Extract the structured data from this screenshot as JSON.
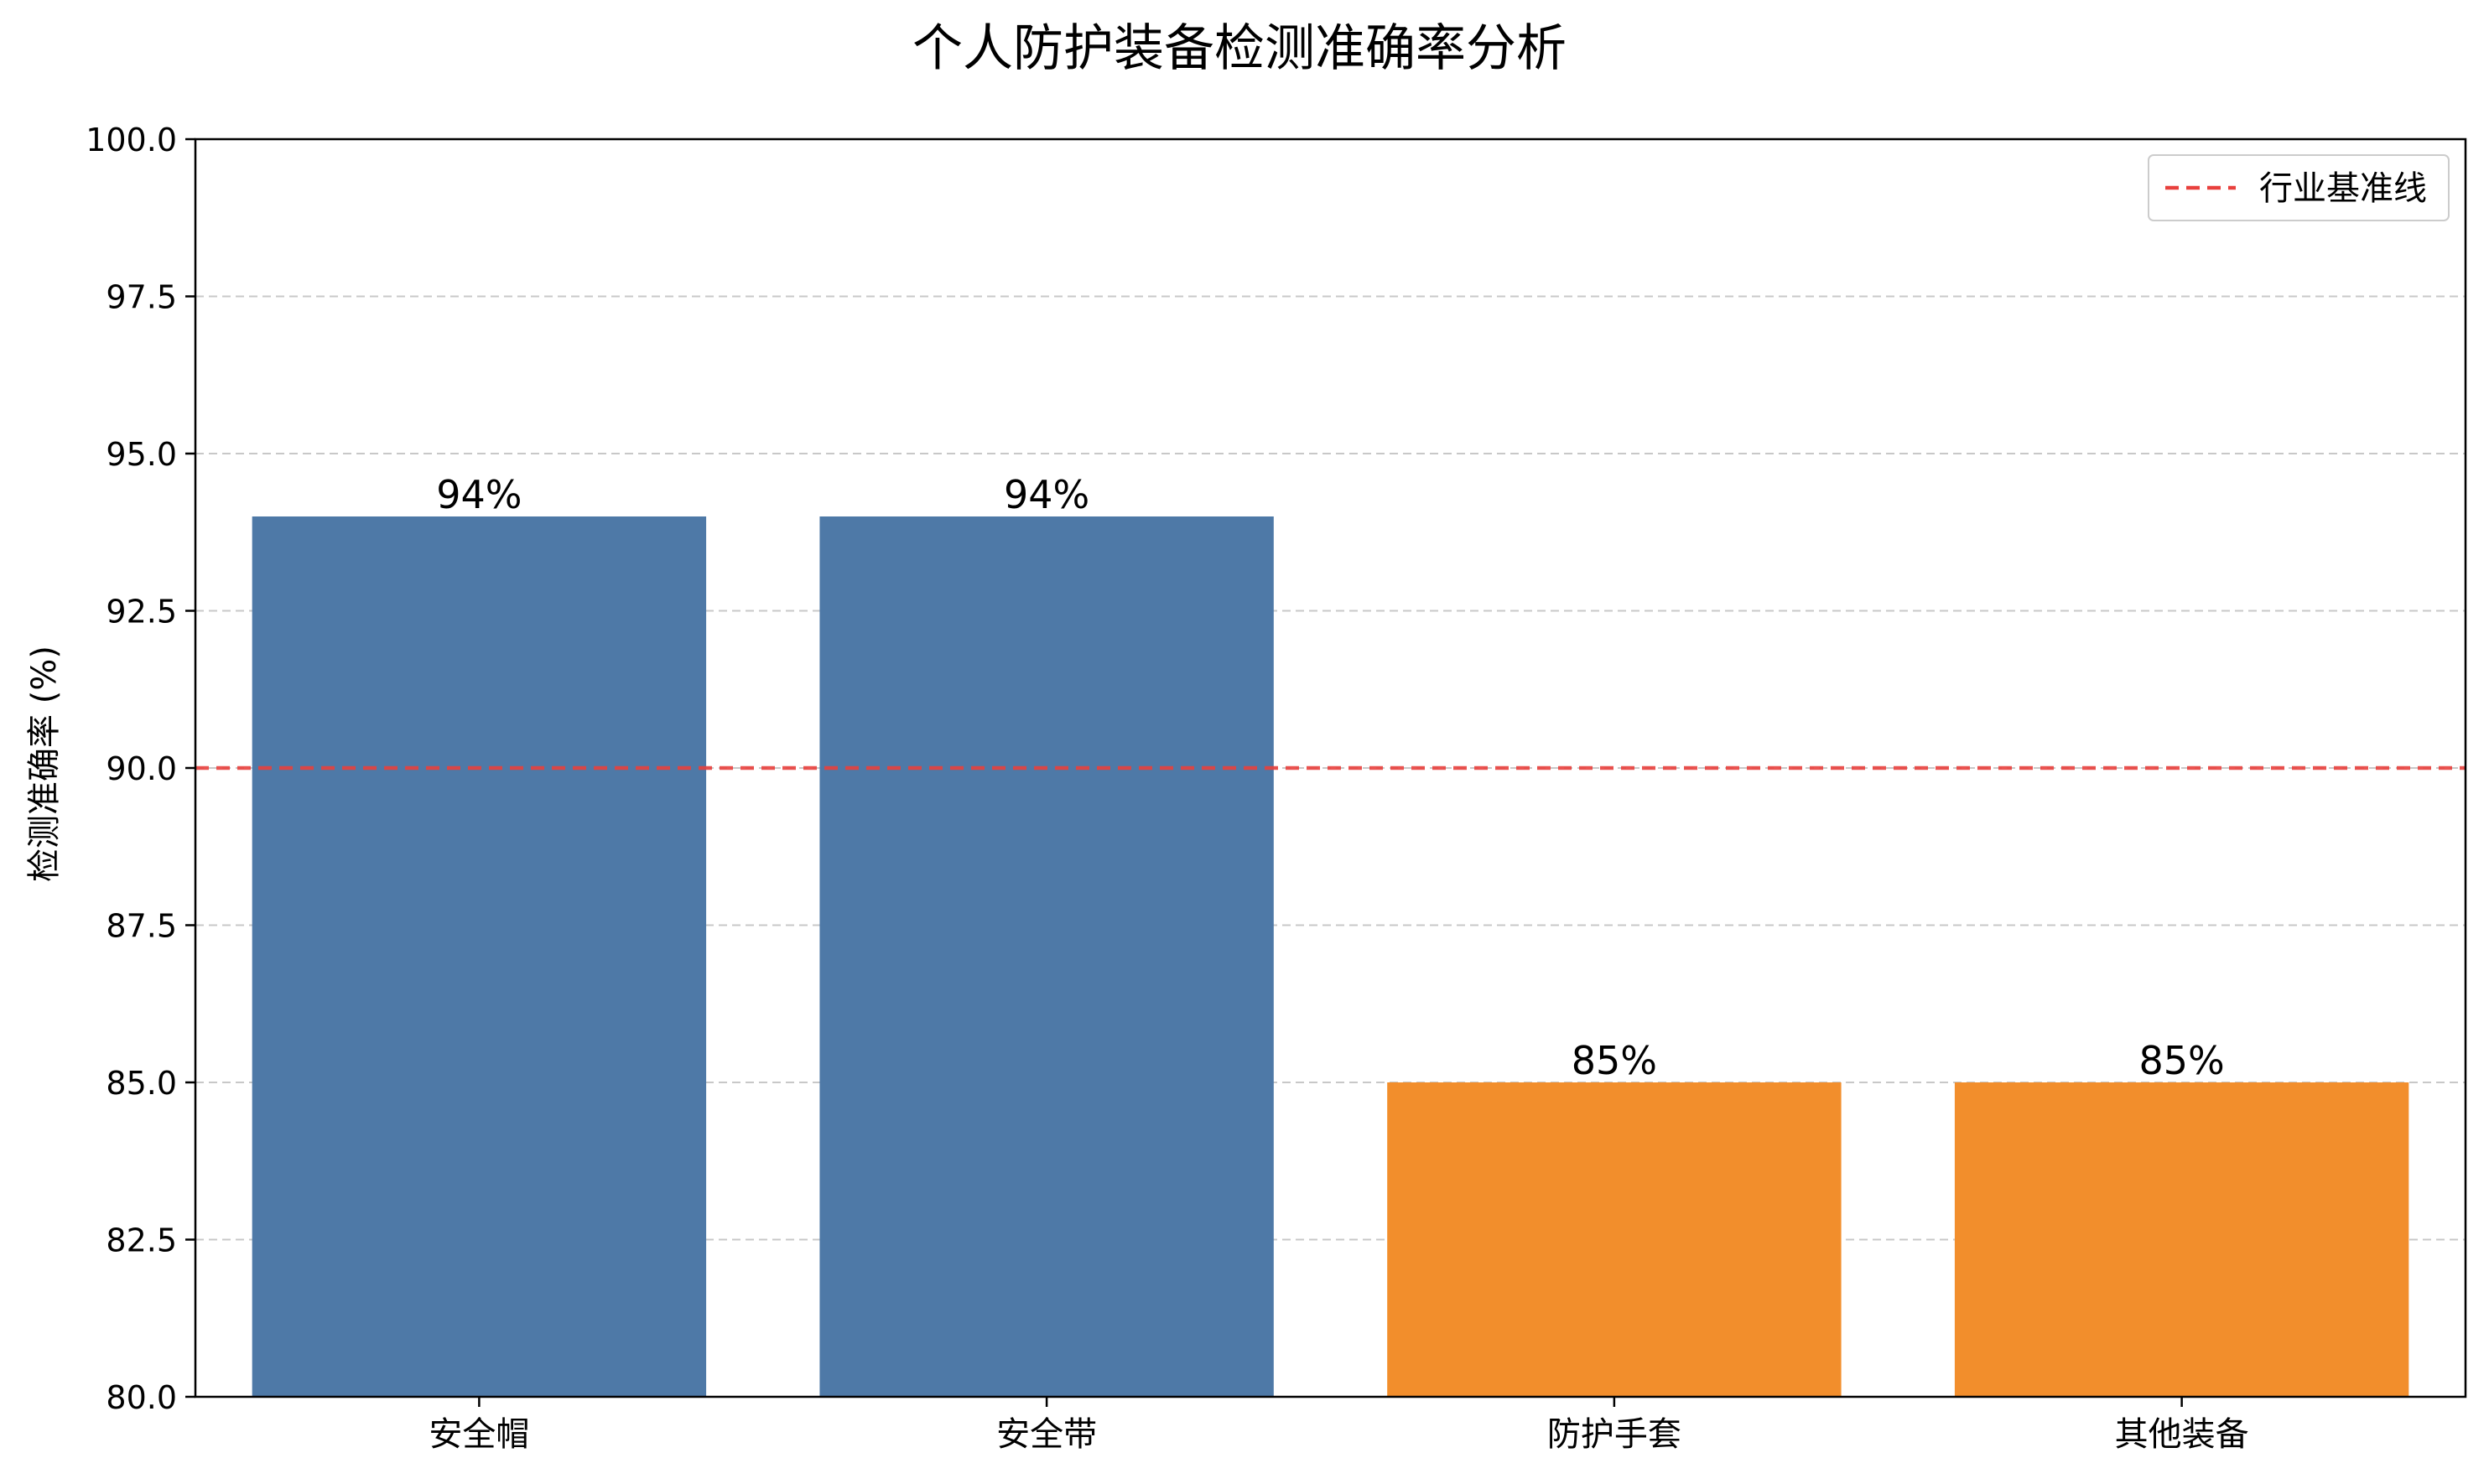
{
  "chart_data": {
    "type": "bar",
    "title": "个人防护装备检测准确率分析",
    "xlabel": "",
    "ylabel": "检测准确率 (%)",
    "categories": [
      "安全帽",
      "安全带",
      "防护手套",
      "其他装备"
    ],
    "values": [
      94,
      94,
      85,
      85
    ],
    "value_labels": [
      "94%",
      "94%",
      "85%",
      "85%"
    ],
    "bar_colors": [
      "#4e79a7",
      "#4e79a7",
      "#f28e2c",
      "#f28e2c"
    ],
    "ylim": [
      80,
      100
    ],
    "yticks": [
      80.0,
      82.5,
      85.0,
      87.5,
      90.0,
      92.5,
      95.0,
      97.5,
      100.0
    ],
    "ytick_labels": [
      "80.0",
      "82.5",
      "85.0",
      "87.5",
      "90.0",
      "92.5",
      "95.0",
      "97.5",
      "100.0"
    ],
    "grid": {
      "axis": "y",
      "style": "dashed",
      "color": "#c8c8c8"
    },
    "reference_line": {
      "value": 90,
      "label": "行业基准线",
      "color": "#e8403d",
      "style": "dashed"
    },
    "legend": {
      "position": "top-right",
      "entries": [
        "行业基准线"
      ]
    }
  }
}
